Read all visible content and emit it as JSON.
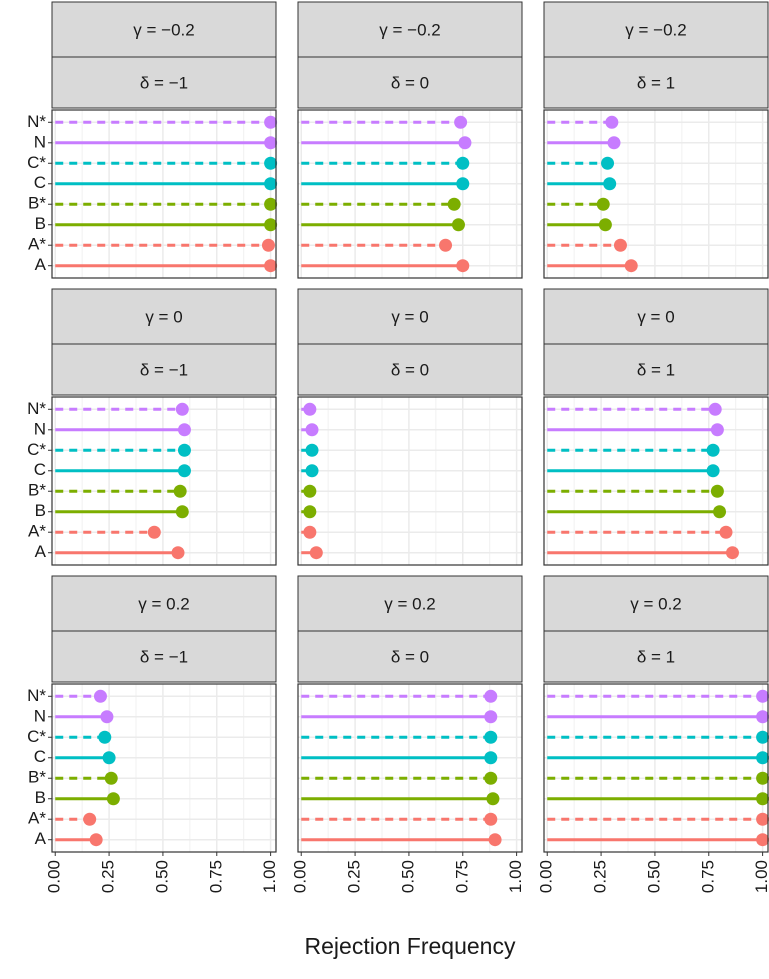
{
  "xlabel": "Rejection Frequency",
  "chart_data": [
    {
      "type": "lollipop",
      "gamma_label": "γ = −0.2",
      "delta_label": "δ = −1",
      "categories": [
        "A",
        "A*",
        "B",
        "B*",
        "C",
        "C*",
        "N",
        "N*"
      ],
      "values": [
        1.0,
        0.99,
        1.0,
        1.0,
        1.0,
        1.0,
        1.0,
        1.0
      ],
      "colors": [
        "#f8766d",
        "#f8766d",
        "#7cae00",
        "#7cae00",
        "#00bfc4",
        "#00bfc4",
        "#c77cff",
        "#c77cff"
      ],
      "linestyles": [
        "solid",
        "dashed",
        "solid",
        "dashed",
        "solid",
        "dashed",
        "solid",
        "dashed"
      ],
      "xlim": [
        -0.015,
        1.025
      ],
      "xticks": [
        {
          "value": 0,
          "label": "0.00"
        },
        {
          "value": 0.25,
          "label": "0.25"
        },
        {
          "value": 0.5,
          "label": "0.50"
        },
        {
          "value": 0.75,
          "label": "0.75"
        },
        {
          "value": 1,
          "label": "1.00"
        }
      ]
    },
    {
      "type": "lollipop",
      "gamma_label": "γ = −0.2",
      "delta_label": "δ = 0",
      "categories": [
        "A",
        "A*",
        "B",
        "B*",
        "C",
        "C*",
        "N",
        "N*"
      ],
      "values": [
        0.75,
        0.67,
        0.73,
        0.71,
        0.75,
        0.75,
        0.76,
        0.74
      ],
      "colors": [
        "#f8766d",
        "#f8766d",
        "#7cae00",
        "#7cae00",
        "#00bfc4",
        "#00bfc4",
        "#c77cff",
        "#c77cff"
      ],
      "linestyles": [
        "solid",
        "dashed",
        "solid",
        "dashed",
        "solid",
        "dashed",
        "solid",
        "dashed"
      ],
      "xlim": [
        -0.015,
        1.025
      ],
      "xticks": [
        {
          "value": 0,
          "label": "0.00"
        },
        {
          "value": 0.25,
          "label": "0.25"
        },
        {
          "value": 0.5,
          "label": "0.50"
        },
        {
          "value": 0.75,
          "label": "0.75"
        },
        {
          "value": 1,
          "label": "1.00"
        }
      ]
    },
    {
      "type": "lollipop",
      "gamma_label": "γ = −0.2",
      "delta_label": "δ = 1",
      "categories": [
        "A",
        "A*",
        "B",
        "B*",
        "C",
        "C*",
        "N",
        "N*"
      ],
      "values": [
        0.39,
        0.34,
        0.27,
        0.26,
        0.29,
        0.28,
        0.31,
        0.3
      ],
      "colors": [
        "#f8766d",
        "#f8766d",
        "#7cae00",
        "#7cae00",
        "#00bfc4",
        "#00bfc4",
        "#c77cff",
        "#c77cff"
      ],
      "linestyles": [
        "solid",
        "dashed",
        "solid",
        "dashed",
        "solid",
        "dashed",
        "solid",
        "dashed"
      ],
      "xlim": [
        -0.015,
        1.025
      ],
      "xticks": [
        {
          "value": 0,
          "label": "0.00"
        },
        {
          "value": 0.25,
          "label": "0.25"
        },
        {
          "value": 0.5,
          "label": "0.50"
        },
        {
          "value": 0.75,
          "label": "0.75"
        },
        {
          "value": 1,
          "label": "1.00"
        }
      ]
    },
    {
      "type": "lollipop",
      "gamma_label": "γ = 0",
      "delta_label": "δ = −1",
      "categories": [
        "A",
        "A*",
        "B",
        "B*",
        "C",
        "C*",
        "N",
        "N*"
      ],
      "values": [
        0.57,
        0.46,
        0.59,
        0.58,
        0.6,
        0.6,
        0.6,
        0.59
      ],
      "colors": [
        "#f8766d",
        "#f8766d",
        "#7cae00",
        "#7cae00",
        "#00bfc4",
        "#00bfc4",
        "#c77cff",
        "#c77cff"
      ],
      "linestyles": [
        "solid",
        "dashed",
        "solid",
        "dashed",
        "solid",
        "dashed",
        "solid",
        "dashed"
      ],
      "xlim": [
        -0.015,
        1.025
      ],
      "xticks": [
        {
          "value": 0,
          "label": "0.00"
        },
        {
          "value": 0.25,
          "label": "0.25"
        },
        {
          "value": 0.5,
          "label": "0.50"
        },
        {
          "value": 0.75,
          "label": "0.75"
        },
        {
          "value": 1,
          "label": "1.00"
        }
      ]
    },
    {
      "type": "lollipop",
      "gamma_label": "γ = 0",
      "delta_label": "δ = 0",
      "categories": [
        "A",
        "A*",
        "B",
        "B*",
        "C",
        "C*",
        "N",
        "N*"
      ],
      "values": [
        0.07,
        0.04,
        0.04,
        0.04,
        0.05,
        0.05,
        0.05,
        0.04
      ],
      "colors": [
        "#f8766d",
        "#f8766d",
        "#7cae00",
        "#7cae00",
        "#00bfc4",
        "#00bfc4",
        "#c77cff",
        "#c77cff"
      ],
      "linestyles": [
        "solid",
        "dashed",
        "solid",
        "dashed",
        "solid",
        "dashed",
        "solid",
        "dashed"
      ],
      "xlim": [
        -0.015,
        1.025
      ],
      "xticks": [
        {
          "value": 0,
          "label": "0.00"
        },
        {
          "value": 0.25,
          "label": "0.25"
        },
        {
          "value": 0.5,
          "label": "0.50"
        },
        {
          "value": 0.75,
          "label": "0.75"
        },
        {
          "value": 1,
          "label": "1.00"
        }
      ]
    },
    {
      "type": "lollipop",
      "gamma_label": "γ = 0",
      "delta_label": "δ = 1",
      "categories": [
        "A",
        "A*",
        "B",
        "B*",
        "C",
        "C*",
        "N",
        "N*"
      ],
      "values": [
        0.86,
        0.83,
        0.8,
        0.79,
        0.77,
        0.77,
        0.79,
        0.78
      ],
      "colors": [
        "#f8766d",
        "#f8766d",
        "#7cae00",
        "#7cae00",
        "#00bfc4",
        "#00bfc4",
        "#c77cff",
        "#c77cff"
      ],
      "linestyles": [
        "solid",
        "dashed",
        "solid",
        "dashed",
        "solid",
        "dashed",
        "solid",
        "dashed"
      ],
      "xlim": [
        -0.015,
        1.025
      ],
      "xticks": [
        {
          "value": 0,
          "label": "0.00"
        },
        {
          "value": 0.25,
          "label": "0.25"
        },
        {
          "value": 0.5,
          "label": "0.50"
        },
        {
          "value": 0.75,
          "label": "0.75"
        },
        {
          "value": 1,
          "label": "1.00"
        }
      ]
    },
    {
      "type": "lollipop",
      "gamma_label": "γ = 0.2",
      "delta_label": "δ = −1",
      "categories": [
        "A",
        "A*",
        "B",
        "B*",
        "C",
        "C*",
        "N",
        "N*"
      ],
      "values": [
        0.19,
        0.16,
        0.27,
        0.26,
        0.25,
        0.23,
        0.24,
        0.21
      ],
      "colors": [
        "#f8766d",
        "#f8766d",
        "#7cae00",
        "#7cae00",
        "#00bfc4",
        "#00bfc4",
        "#c77cff",
        "#c77cff"
      ],
      "linestyles": [
        "solid",
        "dashed",
        "solid",
        "dashed",
        "solid",
        "dashed",
        "solid",
        "dashed"
      ],
      "xlim": [
        -0.015,
        1.025
      ],
      "xticks": [
        {
          "value": 0,
          "label": "0.00"
        },
        {
          "value": 0.25,
          "label": "0.25"
        },
        {
          "value": 0.5,
          "label": "0.50"
        },
        {
          "value": 0.75,
          "label": "0.75"
        },
        {
          "value": 1,
          "label": "1.00"
        }
      ]
    },
    {
      "type": "lollipop",
      "gamma_label": "γ = 0.2",
      "delta_label": "δ = 0",
      "categories": [
        "A",
        "A*",
        "B",
        "B*",
        "C",
        "C*",
        "N",
        "N*"
      ],
      "values": [
        0.9,
        0.88,
        0.89,
        0.88,
        0.88,
        0.88,
        0.88,
        0.88
      ],
      "colors": [
        "#f8766d",
        "#f8766d",
        "#7cae00",
        "#7cae00",
        "#00bfc4",
        "#00bfc4",
        "#c77cff",
        "#c77cff"
      ],
      "linestyles": [
        "solid",
        "dashed",
        "solid",
        "dashed",
        "solid",
        "dashed",
        "solid",
        "dashed"
      ],
      "xlim": [
        -0.015,
        1.025
      ],
      "xticks": [
        {
          "value": 0,
          "label": "0.00"
        },
        {
          "value": 0.25,
          "label": "0.25"
        },
        {
          "value": 0.5,
          "label": "0.50"
        },
        {
          "value": 0.75,
          "label": "0.75"
        },
        {
          "value": 1,
          "label": "1.00"
        }
      ]
    },
    {
      "type": "lollipop",
      "gamma_label": "γ = 0.2",
      "delta_label": "δ = 1",
      "categories": [
        "A",
        "A*",
        "B",
        "B*",
        "C",
        "C*",
        "N",
        "N*"
      ],
      "values": [
        1.0,
        1.0,
        1.0,
        1.0,
        1.0,
        1.0,
        1.0,
        1.0
      ],
      "colors": [
        "#f8766d",
        "#f8766d",
        "#7cae00",
        "#7cae00",
        "#00bfc4",
        "#00bfc4",
        "#c77cff",
        "#c77cff"
      ],
      "linestyles": [
        "solid",
        "dashed",
        "solid",
        "dashed",
        "solid",
        "dashed",
        "solid",
        "dashed"
      ],
      "xlim": [
        -0.015,
        1.025
      ],
      "xticks": [
        {
          "value": 0,
          "label": "0.00"
        },
        {
          "value": 0.25,
          "label": "0.25"
        },
        {
          "value": 0.5,
          "label": "0.50"
        },
        {
          "value": 0.75,
          "label": "0.75"
        },
        {
          "value": 1,
          "label": "1.00"
        }
      ]
    }
  ]
}
